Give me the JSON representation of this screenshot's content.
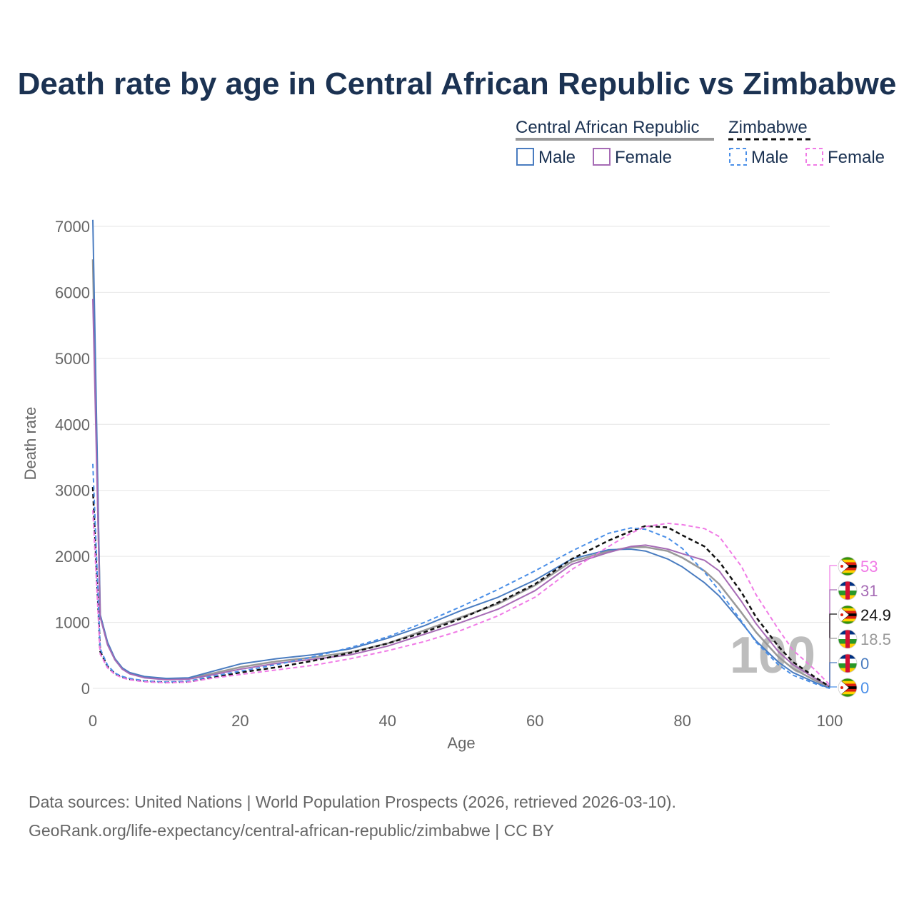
{
  "title": "Death rate by age in Central African Republic vs Zimbabwe",
  "legend": {
    "country1": "Central African Republic",
    "country2": "Zimbabwe",
    "male": "Male",
    "female": "Female"
  },
  "colors": {
    "title": "#1b3252",
    "car_total": "#999999",
    "car_male": "#4a7cc0",
    "car_female": "#a66bb5",
    "zwe_total": "#111111",
    "zwe_male": "#4a8fe8",
    "zwe_female": "#f07ae6"
  },
  "watermark": "100",
  "source_line1": "Data sources: United Nations | World Population Prospects (2026, retrieved 2026-03-10).",
  "source_line2": "GeoRank.org/life-expectancy/central-african-republic/zimbabwe | CC BY",
  "chart_data": {
    "type": "line",
    "xlabel": "Age",
    "ylabel": "Death rate",
    "xlim": [
      0,
      100
    ],
    "ylim": [
      0,
      7000
    ],
    "xticks": [
      0,
      20,
      40,
      60,
      80,
      100
    ],
    "yticks": [
      0,
      1000,
      2000,
      3000,
      4000,
      5000,
      6000,
      7000
    ],
    "grid": true,
    "x": [
      0,
      1,
      2,
      3,
      4,
      5,
      7,
      10,
      13,
      16,
      20,
      25,
      30,
      35,
      40,
      45,
      50,
      55,
      60,
      65,
      70,
      73,
      75,
      78,
      80,
      83,
      85,
      88,
      90,
      93,
      95,
      98,
      100
    ],
    "series": [
      {
        "name": "Central African Republic",
        "key": "car_total",
        "dashed": false,
        "values": [
          6500,
          1100,
          680,
          440,
          300,
          230,
          170,
          140,
          150,
          220,
          320,
          410,
          470,
          550,
          680,
          880,
          1080,
          1280,
          1560,
          1920,
          2080,
          2140,
          2140,
          2080,
          1980,
          1780,
          1580,
          1150,
          850,
          480,
          300,
          120,
          18.5
        ]
      },
      {
        "name": "Central African Republic Male",
        "key": "car_male",
        "dashed": false,
        "values": [
          7100,
          1120,
          700,
          450,
          310,
          240,
          180,
          150,
          160,
          250,
          370,
          450,
          510,
          600,
          760,
          950,
          1180,
          1380,
          1640,
          1960,
          2100,
          2110,
          2080,
          1960,
          1840,
          1600,
          1400,
          1000,
          720,
          400,
          240,
          90,
          0
        ]
      },
      {
        "name": "Central African Republic Female",
        "key": "car_female",
        "dashed": false,
        "values": [
          5900,
          1080,
          660,
          430,
          290,
          220,
          160,
          130,
          140,
          200,
          290,
          380,
          440,
          510,
          640,
          820,
          1000,
          1200,
          1480,
          1880,
          2060,
          2150,
          2170,
          2110,
          2040,
          1940,
          1780,
          1320,
          980,
          560,
          360,
          150,
          31
        ]
      },
      {
        "name": "Zimbabwe",
        "key": "zwe_total",
        "dashed": true,
        "values": [
          3050,
          560,
          330,
          220,
          170,
          140,
          110,
          90,
          100,
          160,
          240,
          320,
          420,
          540,
          680,
          850,
          1060,
          1300,
          1580,
          1960,
          2240,
          2380,
          2460,
          2440,
          2320,
          2150,
          1920,
          1460,
          1080,
          640,
          400,
          170,
          24.9
        ]
      },
      {
        "name": "Zimbabwe Male",
        "key": "zwe_male",
        "dashed": true,
        "values": [
          3400,
          600,
          350,
          230,
          180,
          150,
          115,
          95,
          110,
          180,
          260,
          360,
          480,
          620,
          780,
          1000,
          1240,
          1500,
          1780,
          2080,
          2350,
          2430,
          2410,
          2280,
          2120,
          1760,
          1480,
          1020,
          700,
          360,
          200,
          70,
          0
        ]
      },
      {
        "name": "Zimbabwe Female",
        "key": "zwe_female",
        "dashed": true,
        "values": [
          2700,
          520,
          310,
          210,
          160,
          130,
          100,
          85,
          95,
          150,
          210,
          280,
          350,
          450,
          570,
          710,
          880,
          1100,
          1380,
          1800,
          2150,
          2350,
          2450,
          2500,
          2480,
          2420,
          2300,
          1850,
          1420,
          900,
          580,
          280,
          53
        ]
      }
    ],
    "end_labels": [
      {
        "label": "53",
        "key": "zwe_female",
        "flag": "zimbabwe"
      },
      {
        "label": "31",
        "key": "car_female",
        "flag": "car"
      },
      {
        "label": "24.9",
        "key": "zwe_total",
        "flag": "zimbabwe"
      },
      {
        "label": "18.5",
        "key": "car_total",
        "flag": "car"
      },
      {
        "label": "0",
        "key": "car_male",
        "flag": "car"
      },
      {
        "label": "0",
        "key": "zwe_male",
        "flag": "zimbabwe"
      }
    ]
  }
}
